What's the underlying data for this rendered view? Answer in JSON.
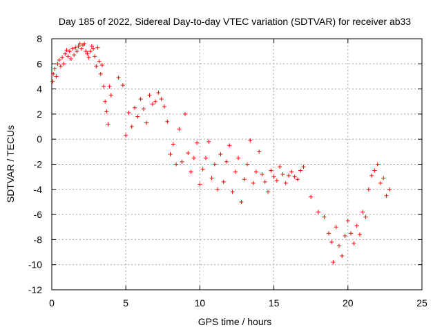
{
  "chart_data": {
    "type": "scatter",
    "title": "Day 185 of 2022, Sidereal Day-to-day VTEC variation (SDTVAR) for receiver ab33",
    "xlabel": "GPS time / hours",
    "ylabel": "SDTVAR / TECUs",
    "xlim": [
      0,
      25
    ],
    "ylim": [
      -12,
      8
    ],
    "xticks": [
      0,
      5,
      10,
      15,
      20,
      25
    ],
    "yticks": [
      -12,
      -10,
      -8,
      -6,
      -4,
      -2,
      0,
      2,
      4,
      6,
      8
    ],
    "xtick_labels": [
      "0",
      "5",
      "10",
      "15",
      "20",
      "25"
    ],
    "ytick_labels": [
      "-12",
      "-10",
      "-8",
      "-6",
      "-4",
      "-2",
      "0",
      "2",
      "4",
      "6",
      "8"
    ],
    "grid": true,
    "marker": "+",
    "color": "#ff0000",
    "series": [
      {
        "name": "SDTVAR",
        "x": [
          0.05,
          0.1,
          0.2,
          0.3,
          0.4,
          0.5,
          0.6,
          0.7,
          0.8,
          0.9,
          1.0,
          1.1,
          1.2,
          1.3,
          1.4,
          1.5,
          1.6,
          1.7,
          1.8,
          1.9,
          2.0,
          2.1,
          2.2,
          2.3,
          2.4,
          2.5,
          2.6,
          2.7,
          2.8,
          2.9,
          3.0,
          3.1,
          3.2,
          3.3,
          3.4,
          3.5,
          3.6,
          3.7,
          3.8,
          3.9,
          4.0,
          4.5,
          4.8,
          5.0,
          5.2,
          5.4,
          5.6,
          5.8,
          6.0,
          6.2,
          6.4,
          6.6,
          6.8,
          7.0,
          7.2,
          7.4,
          7.6,
          7.8,
          8.0,
          8.2,
          8.4,
          8.6,
          8.8,
          9.0,
          9.2,
          9.4,
          9.6,
          9.8,
          10.0,
          10.2,
          10.4,
          10.6,
          10.8,
          11.0,
          11.2,
          11.4,
          11.6,
          11.8,
          12.0,
          12.2,
          12.4,
          12.6,
          12.8,
          13.0,
          13.2,
          13.4,
          13.6,
          13.8,
          14.0,
          14.2,
          14.4,
          14.6,
          14.8,
          15.0,
          15.2,
          15.4,
          15.6,
          15.8,
          16.0,
          16.2,
          16.4,
          16.6,
          16.8,
          17.0,
          17.5,
          18.0,
          18.4,
          18.7,
          18.9,
          19.0,
          19.2,
          19.4,
          19.6,
          19.8,
          20.0,
          20.2,
          20.4,
          20.6,
          20.8,
          21.0,
          21.2,
          21.4,
          21.6,
          21.8,
          22.0,
          22.2,
          22.4,
          22.6,
          22.8
        ],
        "y": [
          4.6,
          5.2,
          5.6,
          5.0,
          6.0,
          6.3,
          5.8,
          6.5,
          6.0,
          6.8,
          7.1,
          6.6,
          7.0,
          6.4,
          7.2,
          6.7,
          7.3,
          7.0,
          7.4,
          7.6,
          7.2,
          7.5,
          7.6,
          7.0,
          6.8,
          6.5,
          7.0,
          7.4,
          7.2,
          6.6,
          5.8,
          7.3,
          6.2,
          5.2,
          5.9,
          4.2,
          3.0,
          2.2,
          1.2,
          4.2,
          3.5,
          4.9,
          4.3,
          0.3,
          2.1,
          1.0,
          2.5,
          1.8,
          3.2,
          2.4,
          1.3,
          3.5,
          2.8,
          3.0,
          3.7,
          3.2,
          2.6,
          1.4,
          -1.2,
          -0.4,
          -2.0,
          0.8,
          -1.8,
          2.0,
          -1.1,
          -2.6,
          -1.5,
          -0.3,
          -3.6,
          -2.4,
          -1.5,
          -0.2,
          -3.1,
          -2.0,
          -4.0,
          -1.2,
          -3.4,
          -1.8,
          -0.5,
          -4.2,
          -2.6,
          -1.5,
          -5.0,
          -3.2,
          -2.0,
          -0.1,
          -3.5,
          -2.6,
          -1.0,
          -2.8,
          -3.4,
          -4.2,
          -2.5,
          -3.0,
          -3.3,
          -2.2,
          -2.8,
          -3.5,
          -2.9,
          -2.6,
          -3.0,
          -3.2,
          -2.5,
          -2.2,
          -4.6,
          -5.8,
          -6.2,
          -7.5,
          -8.2,
          -9.8,
          -7.0,
          -8.5,
          -9.3,
          -7.7,
          -6.5,
          -7.5,
          -8.3,
          -6.9,
          -7.6,
          -5.8,
          -6.2,
          -4.0,
          -2.9,
          -2.5,
          -2.0,
          -3.5,
          -3.1,
          -4.5,
          -4.0
        ]
      }
    ]
  }
}
